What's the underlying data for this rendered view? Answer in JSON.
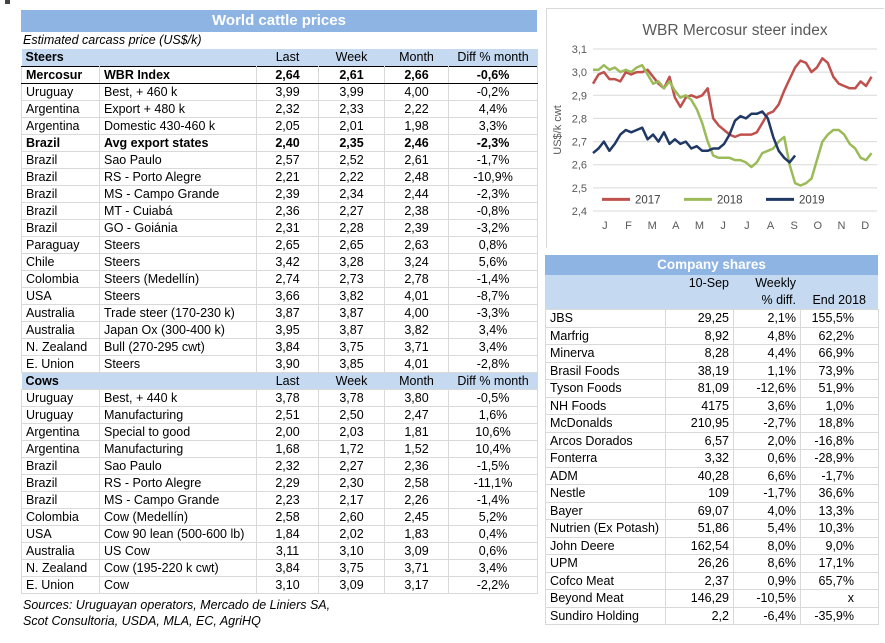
{
  "colors": {
    "title_bar": "#8DB4E2",
    "subheader": "#C5D9F1",
    "grid_line": "#D9D9D9",
    "axis_text": "#595959",
    "series_2017": "#C0504D",
    "series_2018": "#9BBB59",
    "series_2019": "#1F3864"
  },
  "left_table": {
    "title": "World cattle prices",
    "subtitle": "Estimated carcass price (US$/k)",
    "columns": [
      "Last",
      "Week",
      "Month",
      "Diff % month"
    ],
    "steers": {
      "label": "Steers",
      "rows": [
        {
          "country": "Mercosur",
          "desc": "WBR Index",
          "last": "2,64",
          "week": "2,61",
          "month": "2,66",
          "diff": "-0,6%",
          "bold": true,
          "frame": true
        },
        {
          "country": "Uruguay",
          "desc": "Best, + 460 k",
          "last": "3,99",
          "week": "3,99",
          "month": "4,00",
          "diff": "-0,2%"
        },
        {
          "country": "Argentina",
          "desc": "Export + 480 k",
          "last": "2,32",
          "week": "2,33",
          "month": "2,22",
          "diff": "4,4%"
        },
        {
          "country": "Argentina",
          "desc": "Domestic 430-460 k",
          "last": "2,05",
          "week": "2,01",
          "month": "1,98",
          "diff": "3,3%"
        },
        {
          "country": "Brazil",
          "desc": "Avg export states",
          "last": "2,40",
          "week": "2,35",
          "month": "2,46",
          "diff": "-2,3%",
          "bold": true
        },
        {
          "country": "Brazil",
          "desc": "Sao Paulo",
          "last": "2,57",
          "week": "2,52",
          "month": "2,61",
          "diff": "-1,7%"
        },
        {
          "country": "Brazil",
          "desc": "RS - Porto Alegre",
          "last": "2,21",
          "week": "2,22",
          "month": "2,48",
          "diff": "-10,9%"
        },
        {
          "country": "Brazil",
          "desc": "MS - Campo Grande",
          "last": "2,39",
          "week": "2,34",
          "month": "2,44",
          "diff": "-2,3%"
        },
        {
          "country": "Brazil",
          "desc": "MT - Cuiabá",
          "last": "2,36",
          "week": "2,27",
          "month": "2,38",
          "diff": "-0,8%"
        },
        {
          "country": "Brazil",
          "desc": "GO - Goiánia",
          "last": "2,31",
          "week": "2,28",
          "month": "2,39",
          "diff": "-3,2%"
        },
        {
          "country": "Paraguay",
          "desc": "Steers",
          "last": "2,65",
          "week": "2,65",
          "month": "2,63",
          "diff": "0,8%"
        },
        {
          "country": "Chile",
          "desc": "Steers",
          "last": "3,42",
          "week": "3,28",
          "month": "3,24",
          "diff": "5,6%"
        },
        {
          "country": "Colombia",
          "desc": "Steers (Medellín)",
          "last": "2,74",
          "week": "2,73",
          "month": "2,78",
          "diff": "-1,4%"
        },
        {
          "country": "USA",
          "desc": "Steers",
          "last": "3,66",
          "week": "3,82",
          "month": "4,01",
          "diff": "-8,7%"
        },
        {
          "country": "Australia",
          "desc": "Trade steer (170-230 k)",
          "last": "3,87",
          "week": "3,87",
          "month": "4,00",
          "diff": "-3,3%"
        },
        {
          "country": "Australia",
          "desc": "Japan Ox (300-400 k)",
          "last": "3,95",
          "week": "3,87",
          "month": "3,82",
          "diff": "3,4%"
        },
        {
          "country": "N. Zealand",
          "desc": "Bull (270-295 cwt)",
          "last": "3,84",
          "week": "3,75",
          "month": "3,71",
          "diff": "3,4%"
        },
        {
          "country": "E. Union",
          "desc": "Steers",
          "last": "3,90",
          "week": "3,85",
          "month": "4,01",
          "diff": "-2,8%"
        }
      ]
    },
    "cows": {
      "label": "Cows",
      "rows": [
        {
          "country": "Uruguay",
          "desc": "Best, + 440 k",
          "last": "3,78",
          "week": "3,78",
          "month": "3,80",
          "diff": "-0,5%"
        },
        {
          "country": "Uruguay",
          "desc": "Manufacturing",
          "last": "2,51",
          "week": "2,50",
          "month": "2,47",
          "diff": "1,6%"
        },
        {
          "country": "Argentina",
          "desc": "Special to good",
          "last": "2,00",
          "week": "2,03",
          "month": "1,81",
          "diff": "10,6%"
        },
        {
          "country": "Argentina",
          "desc": "Manufacturing",
          "last": "1,68",
          "week": "1,72",
          "month": "1,52",
          "diff": "10,4%"
        },
        {
          "country": "Brazil",
          "desc": "Sao Paulo",
          "last": "2,32",
          "week": "2,27",
          "month": "2,36",
          "diff": "-1,5%"
        },
        {
          "country": "Brazil",
          "desc": "RS - Porto Alegre",
          "last": "2,29",
          "week": "2,30",
          "month": "2,58",
          "diff": "-11,1%"
        },
        {
          "country": "Brazil",
          "desc": "MS - Campo Grande",
          "last": "2,23",
          "week": "2,17",
          "month": "2,26",
          "diff": "-1,4%"
        },
        {
          "country": "Colombia",
          "desc": "Cow (Medellín)",
          "last": "2,58",
          "week": "2,60",
          "month": "2,45",
          "diff": "5,2%"
        },
        {
          "country": "USA",
          "desc": "Cow 90 lean (500-600 lb)",
          "last": "1,84",
          "week": "2,02",
          "month": "1,83",
          "diff": "0,4%"
        },
        {
          "country": "Australia",
          "desc": "US Cow",
          "last": "3,11",
          "week": "3,10",
          "month": "3,09",
          "diff": "0,6%"
        },
        {
          "country": "N. Zealand",
          "desc": "Cow (195-220 k cwt)",
          "last": "3,84",
          "week": "3,75",
          "month": "3,71",
          "diff": "3,4%"
        },
        {
          "country": "E. Union",
          "desc": "Cow",
          "last": "3,10",
          "week": "3,09",
          "month": "3,17",
          "diff": "-2,2%"
        }
      ]
    },
    "sources_line1": "Sources: Uruguayan operators, Mercado de Liniers SA,",
    "sources_line2": "Scot Consultoria, USDA, MLA, EC, AgriHQ"
  },
  "chart_data": {
    "type": "line",
    "title": "WBR Mercosur steer index",
    "ylabel": "US$/k cwt",
    "ylim": [
      2.4,
      3.1
    ],
    "ytick_values": [
      3.1,
      3.0,
      2.9,
      2.8,
      2.7,
      2.6,
      2.5,
      2.4
    ],
    "ytick_labels": [
      "3,1",
      "3,0",
      "2,9",
      "2,8",
      "2,7",
      "2,6",
      "2,5",
      "2,4"
    ],
    "xtick_labels": [
      "J",
      "F",
      "M",
      "A",
      "M",
      "J",
      "J",
      "A",
      "S",
      "O",
      "N",
      "D"
    ],
    "weeks_per_year": 52,
    "grid": true,
    "legend_position": "bottom-left-inside",
    "series": [
      {
        "name": "2017",
        "color": "#C0504D",
        "values": [
          2.95,
          2.99,
          3.0,
          2.97,
          2.97,
          2.96,
          3.0,
          2.99,
          3.0,
          3.0,
          3.01,
          2.98,
          2.95,
          2.93,
          2.98,
          2.89,
          2.85,
          2.89,
          2.9,
          2.89,
          2.9,
          2.93,
          2.8,
          2.77,
          2.75,
          2.73,
          2.72,
          2.73,
          2.73,
          2.73,
          2.74,
          2.78,
          2.82,
          2.83,
          2.86,
          2.92,
          2.97,
          3.02,
          3.05,
          3.04,
          3.0,
          3.02,
          3.06,
          3.04,
          2.98,
          2.95,
          2.94,
          2.93,
          2.93,
          2.96,
          2.94,
          2.98
        ]
      },
      {
        "name": "2018",
        "color": "#9BBB59",
        "values": [
          3.01,
          3.01,
          3.03,
          3.01,
          3.02,
          3.0,
          3.01,
          3.0,
          3.02,
          3.03,
          2.99,
          2.95,
          2.96,
          2.93,
          2.96,
          2.92,
          2.89,
          2.9,
          2.88,
          2.84,
          2.78,
          2.7,
          2.64,
          2.63,
          2.63,
          2.63,
          2.62,
          2.62,
          2.61,
          2.59,
          2.61,
          2.65,
          2.66,
          2.67,
          2.7,
          2.72,
          2.6,
          2.52,
          2.51,
          2.52,
          2.54,
          2.62,
          2.7,
          2.73,
          2.75,
          2.75,
          2.73,
          2.69,
          2.67,
          2.63,
          2.62,
          2.65
        ]
      },
      {
        "name": "2019",
        "color": "#1F3864",
        "values": [
          2.65,
          2.67,
          2.7,
          2.66,
          2.69,
          2.73,
          2.75,
          2.74,
          2.75,
          2.76,
          2.71,
          2.73,
          2.7,
          2.74,
          2.69,
          2.71,
          2.69,
          2.7,
          2.67,
          2.68,
          2.66,
          2.66,
          2.67,
          2.67,
          2.69,
          2.73,
          2.79,
          2.81,
          2.8,
          2.82,
          2.82,
          2.83,
          2.8,
          2.72,
          2.66,
          2.63,
          2.61,
          2.64
        ]
      }
    ]
  },
  "company_table": {
    "title": "Company shares",
    "header": {
      "date": "10-Sep",
      "weekly_line1": "Weekly",
      "weekly_line2": "% diff.",
      "end": "End 2018"
    },
    "rows": [
      {
        "name": "JBS",
        "price": "29,25",
        "weekly": "2,1%",
        "end": "155,5%"
      },
      {
        "name": "Marfrig",
        "price": "8,92",
        "weekly": "4,8%",
        "end": "62,2%"
      },
      {
        "name": "Minerva",
        "price": "8,28",
        "weekly": "4,4%",
        "end": "66,9%"
      },
      {
        "name": "Brasil Foods",
        "price": "38,19",
        "weekly": "1,1%",
        "end": "73,9%"
      },
      {
        "name": "Tyson Foods",
        "price": "81,09",
        "weekly": "-12,6%",
        "end": "51,9%"
      },
      {
        "name": "NH Foods",
        "price": "4175",
        "weekly": "3,6%",
        "end": "1,0%"
      },
      {
        "name": "McDonalds",
        "price": "210,95",
        "weekly": "-2,7%",
        "end": "18,8%"
      },
      {
        "name": "Arcos Dorados",
        "price": "6,57",
        "weekly": "2,0%",
        "end": "-16,8%"
      },
      {
        "name": "Fonterra",
        "price": "3,32",
        "weekly": "0,6%",
        "end": "-28,9%"
      },
      {
        "name": "ADM",
        "price": "40,28",
        "weekly": "6,6%",
        "end": "-1,7%"
      },
      {
        "name": "Nestle",
        "price": "109",
        "weekly": "-1,7%",
        "end": "36,6%"
      },
      {
        "name": "Bayer",
        "price": "69,07",
        "weekly": "4,0%",
        "end": "13,3%"
      },
      {
        "name": "Nutrien (Ex Potash)",
        "price": "51,86",
        "weekly": "5,4%",
        "end": "10,3%"
      },
      {
        "name": "John Deere",
        "price": "162,54",
        "weekly": "8,0%",
        "end": "9,0%"
      },
      {
        "name": "UPM",
        "price": "26,26",
        "weekly": "8,6%",
        "end": "17,1%"
      },
      {
        "name": "Cofco Meat",
        "price": "2,37",
        "weekly": "0,9%",
        "end": "65,7%"
      },
      {
        "name": "Beyond Meat",
        "price": "146,29",
        "weekly": "-10,5%",
        "end": "x"
      },
      {
        "name": "Sundiro Holding",
        "price": "2,2",
        "weekly": "-6,4%",
        "end": "-35,9%"
      }
    ]
  }
}
